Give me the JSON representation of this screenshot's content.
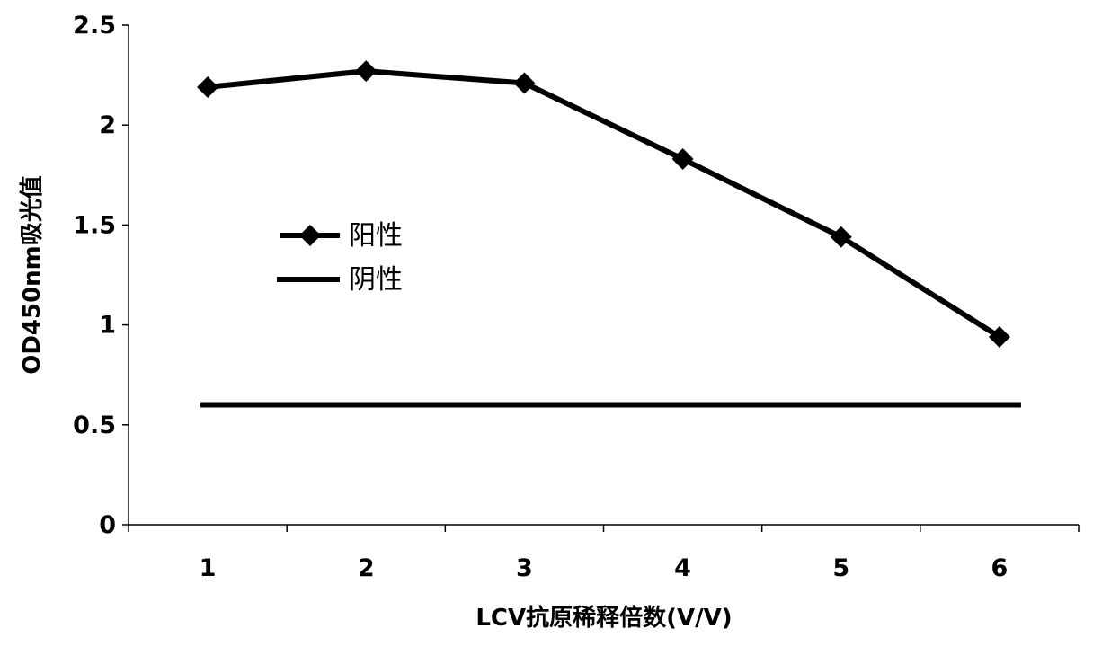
{
  "chart_data": {
    "type": "line",
    "title": "",
    "xlabel": "LCV抗原稀释倍数(V/V)",
    "ylabel": "OD450nm吸光值",
    "categories": [
      "1",
      "2",
      "3",
      "4",
      "5",
      "6"
    ],
    "ylim": [
      0,
      2.5
    ],
    "yticks": [
      "0",
      "0.5",
      "1",
      "1.5",
      "2",
      "2.5"
    ],
    "grid": false,
    "legend_position": "left-middle",
    "series": [
      {
        "name": "阳性",
        "values": [
          2.19,
          2.27,
          2.21,
          1.83,
          1.44,
          0.94
        ],
        "marker": "diamond",
        "color": "#000000"
      },
      {
        "name": "阴性",
        "values": [
          0.6,
          0.6,
          0.6,
          0.6,
          0.6,
          0.6
        ],
        "marker": "none",
        "color": "#000000"
      }
    ]
  }
}
